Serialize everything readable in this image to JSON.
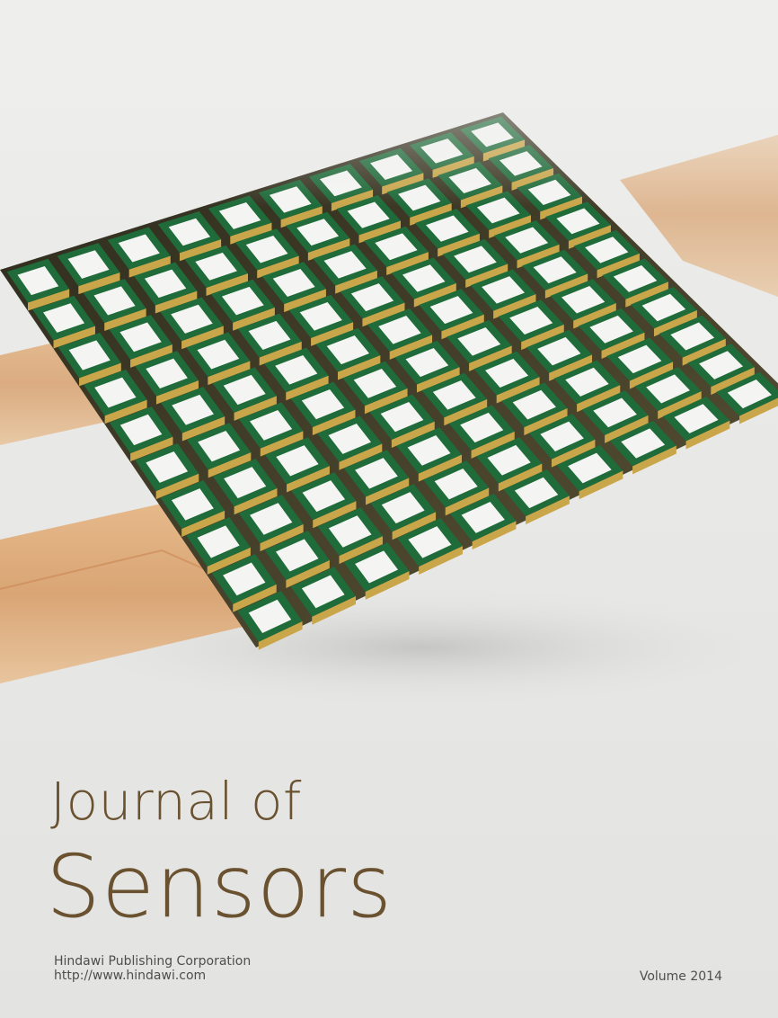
{
  "cover": {
    "title_line1": "Journal of",
    "title_line2": "Sensors",
    "publisher": "Hindawi Publishing Corporation",
    "url": "http://www.hindawi.com",
    "volume": "Volume 2014"
  },
  "image": {
    "subject": "sensor-array-photo",
    "colors": {
      "background": "#e8e8e6",
      "ribbon": "#d9a979",
      "chip_top": "#f4f4f2",
      "chip_border": "#1f6b3a",
      "chip_solder": "#c9a64a",
      "title_text": "#6a5230"
    }
  }
}
